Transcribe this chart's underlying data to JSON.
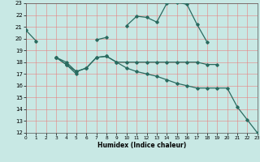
{
  "xlabel": "Humidex (Indice chaleur)",
  "background_color": "#c8e8e4",
  "line_color": "#2a6b60",
  "xlim": [
    0,
    23
  ],
  "ylim": [
    12,
    23
  ],
  "xticks": [
    0,
    1,
    2,
    3,
    4,
    5,
    6,
    7,
    8,
    9,
    10,
    11,
    12,
    13,
    14,
    15,
    16,
    17,
    18,
    19,
    20,
    21,
    22,
    23
  ],
  "yticks": [
    12,
    13,
    14,
    15,
    16,
    17,
    18,
    19,
    20,
    21,
    22,
    23
  ],
  "lines": [
    {
      "comment": "main arc curve: starts at 0=20.7, 1=19.8, then goes to 3=18.4, 4=17.8, 5=17.0, then 7=19.9, 8=20.1, 10=21.1, 11=21.9, 12=21.8, 13=21.4, 14=23.0, 15=23.1, 16=22.9, 17=21.2, 18=19.7",
      "segments": [
        {
          "x": [
            0,
            1
          ],
          "y": [
            20.7,
            19.8
          ]
        },
        {
          "x": [
            3,
            4,
            5
          ],
          "y": [
            18.4,
            17.8,
            17.0
          ]
        },
        {
          "x": [
            7,
            8
          ],
          "y": [
            19.9,
            20.1
          ]
        },
        {
          "x": [
            10,
            11,
            12,
            13,
            14,
            15,
            16,
            17,
            18
          ],
          "y": [
            21.1,
            21.9,
            21.8,
            21.4,
            23.0,
            23.1,
            22.9,
            21.2,
            19.7
          ]
        }
      ]
    },
    {
      "segments": [
        {
          "x": [
            3,
            4,
            5,
            6,
            7,
            8,
            9,
            10,
            11,
            12,
            13,
            14,
            15,
            16,
            17,
            18,
            19
          ],
          "y": [
            18.4,
            17.8,
            17.2,
            17.5,
            18.4,
            18.5,
            18.0,
            18.0,
            18.0,
            18.0,
            18.0,
            18.0,
            18.0,
            18.0,
            18.0,
            17.8,
            17.8
          ]
        }
      ]
    },
    {
      "comment": "lower declining line from 3=18.4 declining to 19=15.8 then 20=15.8, 21=14.2, 22=13.1, 23=12.0",
      "segments": [
        {
          "x": [
            3,
            4,
            5,
            6,
            7,
            8,
            9,
            10,
            11,
            12,
            13,
            14,
            15,
            16,
            17,
            18,
            19,
            20,
            21,
            22,
            23
          ],
          "y": [
            18.4,
            18.0,
            17.2,
            17.5,
            18.4,
            18.5,
            18.0,
            17.5,
            17.2,
            17.0,
            16.8,
            16.5,
            16.2,
            16.0,
            15.8,
            15.8,
            15.8,
            15.8,
            14.2,
            13.1,
            12.0
          ]
        }
      ]
    }
  ]
}
